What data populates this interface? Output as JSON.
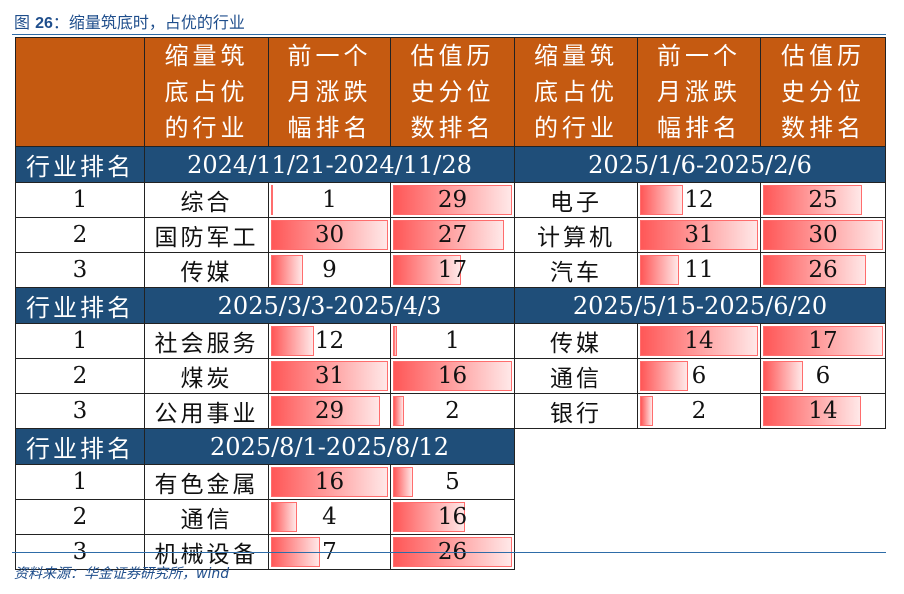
{
  "title": {
    "prefix": "图 ",
    "num": "26",
    "text": "：缩量筑底时，占优的行业"
  },
  "header": {
    "industry": "缩量筑底占优的行业",
    "momentum": "前一个月涨跌幅排名",
    "valuation": "估值历史分位数排名"
  },
  "rank_label": "行业排名",
  "blocks": [
    {
      "period": "2024/11/21-2024/11/28",
      "rows": [
        {
          "rank": "1",
          "industry": "综合",
          "momentum": 1,
          "valuation": 29
        },
        {
          "rank": "2",
          "industry": "国防军工",
          "momentum": 30,
          "valuation": 27
        },
        {
          "rank": "3",
          "industry": "传媒",
          "momentum": 9,
          "valuation": 17
        }
      ]
    },
    {
      "period": "2025/1/6-2025/2/6",
      "rows": [
        {
          "rank": "1",
          "industry": "电子",
          "momentum": 12,
          "valuation": 25
        },
        {
          "rank": "2",
          "industry": "计算机",
          "momentum": 31,
          "valuation": 30
        },
        {
          "rank": "3",
          "industry": "汽车",
          "momentum": 11,
          "valuation": 26
        }
      ]
    },
    {
      "period": "2025/3/3-2025/4/3",
      "rows": [
        {
          "rank": "1",
          "industry": "社会服务",
          "momentum": 12,
          "valuation": 1
        },
        {
          "rank": "2",
          "industry": "煤炭",
          "momentum": 31,
          "valuation": 16
        },
        {
          "rank": "3",
          "industry": "公用事业",
          "momentum": 29,
          "valuation": 2
        }
      ]
    },
    {
      "period": "2025/5/15-2025/6/20",
      "rows": [
        {
          "rank": "1",
          "industry": "传媒",
          "momentum": 14,
          "valuation": 17
        },
        {
          "rank": "2",
          "industry": "通信",
          "momentum": 6,
          "valuation": 6
        },
        {
          "rank": "3",
          "industry": "银行",
          "momentum": 2,
          "valuation": 14
        }
      ]
    },
    {
      "period": "2025/8/1-2025/8/12",
      "rows": [
        {
          "rank": "1",
          "industry": "有色金属",
          "momentum": 16,
          "valuation": 5
        },
        {
          "rank": "2",
          "industry": "通信",
          "momentum": 4,
          "valuation": 16
        },
        {
          "rank": "3",
          "industry": "机械设备",
          "momentum": 7,
          "valuation": 26
        }
      ]
    }
  ],
  "source": "资料来源：华金证券研究所，wind",
  "colors": {
    "header": "#c55a11",
    "section": "#1f4e79",
    "bar": "#ff5757"
  }
}
